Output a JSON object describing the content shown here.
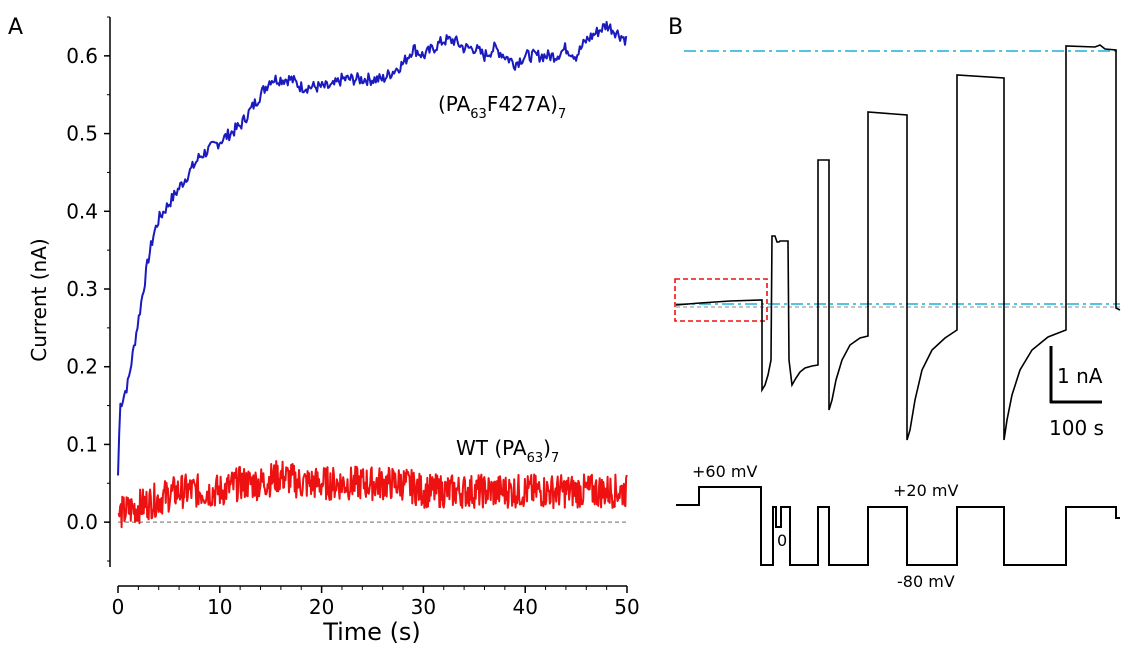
{
  "chart_data": [
    {
      "panel": "A",
      "type": "line",
      "xlabel": "Time (s)",
      "ylabel": "Current (nA)",
      "xlim": [
        0,
        50
      ],
      "ylim": [
        -0.05,
        0.65
      ],
      "x_ticks": [
        "0",
        "10",
        "20",
        "30",
        "40",
        "50"
      ],
      "y_ticks": [
        "0.0",
        "0.1",
        "0.2",
        "0.3",
        "0.4",
        "0.5",
        "0.6"
      ],
      "baseline": 0,
      "series": [
        {
          "name": "(PA63F427A)7",
          "label_main": "(PA",
          "label_sub1": "63",
          "label_mid": "F427A)",
          "label_sub2": "7",
          "color": "#1a1abf",
          "x": [
            0,
            0.2,
            0.5,
            1,
            1.5,
            2,
            2.5,
            3,
            3.5,
            4,
            4.5,
            5,
            6,
            7,
            8,
            9,
            10,
            11,
            12,
            13,
            14,
            15,
            16,
            17,
            18,
            19,
            20,
            21,
            22,
            23,
            24,
            25,
            26,
            27,
            28,
            29,
            30,
            31,
            32,
            33,
            34,
            35,
            36,
            37,
            38,
            39,
            40,
            41,
            42,
            43,
            44,
            45,
            46,
            47,
            48,
            49,
            50
          ],
          "y": [
            0.06,
            0.15,
            0.16,
            0.18,
            0.22,
            0.26,
            0.3,
            0.34,
            0.37,
            0.39,
            0.4,
            0.41,
            0.43,
            0.45,
            0.47,
            0.48,
            0.49,
            0.5,
            0.51,
            0.53,
            0.55,
            0.57,
            0.57,
            0.57,
            0.56,
            0.56,
            0.56,
            0.56,
            0.57,
            0.57,
            0.57,
            0.57,
            0.57,
            0.58,
            0.59,
            0.61,
            0.6,
            0.61,
            0.62,
            0.62,
            0.61,
            0.61,
            0.6,
            0.61,
            0.6,
            0.59,
            0.6,
            0.6,
            0.6,
            0.6,
            0.61,
            0.6,
            0.62,
            0.63,
            0.64,
            0.63,
            0.62
          ]
        },
        {
          "name": "WT (PA63)7",
          "label_main": "WT (PA",
          "label_sub1": "63",
          "label_mid": ")",
          "label_sub2": "7",
          "color": "#ee1111",
          "x": [
            0,
            2,
            4,
            6,
            8,
            10,
            12,
            14,
            16,
            18,
            20,
            22,
            24,
            26,
            28,
            30,
            32,
            34,
            36,
            38,
            40,
            42,
            44,
            46,
            48,
            50
          ],
          "y": [
            0.01,
            0.02,
            0.03,
            0.04,
            0.04,
            0.04,
            0.05,
            0.05,
            0.06,
            0.05,
            0.05,
            0.05,
            0.05,
            0.05,
            0.05,
            0.04,
            0.04,
            0.04,
            0.04,
            0.04,
            0.04,
            0.04,
            0.04,
            0.04,
            0.04,
            0.04
          ]
        }
      ]
    },
    {
      "panel": "B",
      "type": "line",
      "scale_bar_current": "1 nA",
      "scale_bar_time": "100 s",
      "protocol_labels": {
        "v60": "+60 mV",
        "v20": "+20 mV",
        "v0": "0",
        "vm80": "-80 mV"
      }
    }
  ],
  "panels": {
    "a_label": "A",
    "b_label": "B"
  },
  "colors": {
    "blue": "#1a1abf",
    "red": "#ee1111",
    "cyan": "#1ab0d8",
    "black": "#000000",
    "box": "#ee1111"
  }
}
